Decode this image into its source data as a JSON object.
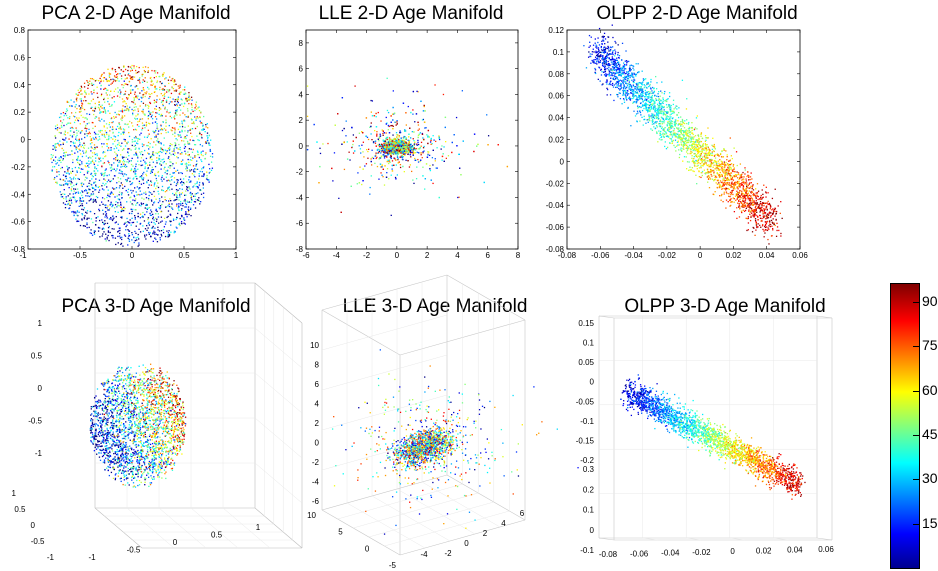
{
  "colorbar": {
    "ticks": [
      "15",
      "30",
      "45",
      "60",
      "75",
      "90"
    ],
    "tick_values": [
      15,
      30,
      45,
      60,
      75,
      90
    ],
    "range": [
      0,
      96
    ],
    "colormap": "jet"
  },
  "chart_data": [
    {
      "type": "scatter",
      "title": "PCA 2-D Age Manifold",
      "xlim": [
        -1,
        1
      ],
      "ylim": [
        -0.8,
        0.8
      ],
      "xticks": [
        "-0.5",
        "0",
        "0.5",
        "1"
      ],
      "xtick_values": [
        -0.5,
        0,
        0.5,
        1
      ],
      "xticks_left": [
        "-1"
      ],
      "yticks": [
        "-0.8",
        "-0.6",
        "-0.4",
        "-0.2",
        "0",
        "0.2",
        "0.4",
        "0.6",
        "0.8"
      ],
      "ytick_values": [
        -0.8,
        -0.6,
        -0.4,
        -0.2,
        0,
        0.2,
        0.4,
        0.6,
        0.8
      ],
      "distribution": "disc of radius ~0.8 centred at (0,-0.1); young ages toward bottom, older toward top",
      "color_by": "age"
    },
    {
      "type": "scatter",
      "title": "LLE 2-D Age Manifold",
      "xlim": [
        -6,
        8
      ],
      "ylim": [
        -8,
        9
      ],
      "xticks": [
        "-6",
        "-4",
        "-2",
        "0",
        "2",
        "4",
        "6",
        "8"
      ],
      "xtick_values": [
        -6,
        -4,
        -2,
        0,
        2,
        4,
        6,
        8
      ],
      "yticks": [
        "-8",
        "-6",
        "-4",
        "-2",
        "0",
        "2",
        "4",
        "6",
        "8"
      ],
      "ytick_values": [
        -8,
        -6,
        -4,
        -2,
        0,
        2,
        4,
        6,
        8
      ],
      "distribution": "dense cluster at (0,0) with sparse spread",
      "color_by": "age"
    },
    {
      "type": "scatter",
      "title": "OLPP 2-D Age Manifold",
      "xlim": [
        -0.08,
        0.06
      ],
      "ylim": [
        -0.08,
        0.12
      ],
      "xticks": [
        "-0.08",
        "-0.06",
        "-0.04",
        "-0.02",
        "0",
        "0.02",
        "0.04",
        "0.06"
      ],
      "xtick_values": [
        -0.08,
        -0.06,
        -0.04,
        -0.02,
        0,
        0.02,
        0.04,
        0.06
      ],
      "yticks": [
        "-0.08",
        "-0.06",
        "-0.04",
        "-0.02",
        "0",
        "0.02",
        "0.04",
        "0.06",
        "0.08",
        "0.1",
        "0.12"
      ],
      "ytick_values": [
        -0.08,
        -0.06,
        -0.04,
        -0.02,
        0,
        0.02,
        0.04,
        0.06,
        0.08,
        0.1,
        0.12
      ],
      "distribution": "elongated band from (-0.06,0.1) to (0.04,-0.05); age increases along band",
      "color_by": "age"
    },
    {
      "type": "scatter",
      "title": "PCA 3-D Age Manifold",
      "zticks": [
        "-1",
        "-0.5",
        "0",
        "0.5",
        "1"
      ],
      "xticks": [
        "-1",
        "-0.5",
        "0",
        "0.5",
        "1"
      ],
      "yticks": [
        "-1",
        "-0.5",
        "0",
        "0.5",
        "1"
      ],
      "color_by": "age"
    },
    {
      "type": "scatter",
      "title": "LLE 3-D Age Manifold",
      "zticks": [
        "-6",
        "-4",
        "-2",
        "0",
        "2",
        "4",
        "6",
        "8",
        "10"
      ],
      "xticks": [
        "-2",
        "0",
        "2",
        "4",
        "6"
      ],
      "xticks_left": [
        "-4"
      ],
      "yticks": [
        "-5",
        "0",
        "5",
        "10"
      ],
      "color_by": "age"
    },
    {
      "type": "scatter",
      "title": "OLPP 3-D Age Manifold",
      "zticks": [
        "-0.2",
        "-0.15",
        "-0.1",
        "-0.05",
        "0",
        "0.05",
        "0.1",
        "0.15"
      ],
      "yticks": [
        "-0.1",
        "0",
        "0.1",
        "0.2",
        "0.3"
      ],
      "xticks": [
        "-0.08",
        "-0.06",
        "-0.04",
        "-0.02",
        "0",
        "0.02",
        "0.04",
        "0.06"
      ],
      "color_by": "age"
    }
  ]
}
